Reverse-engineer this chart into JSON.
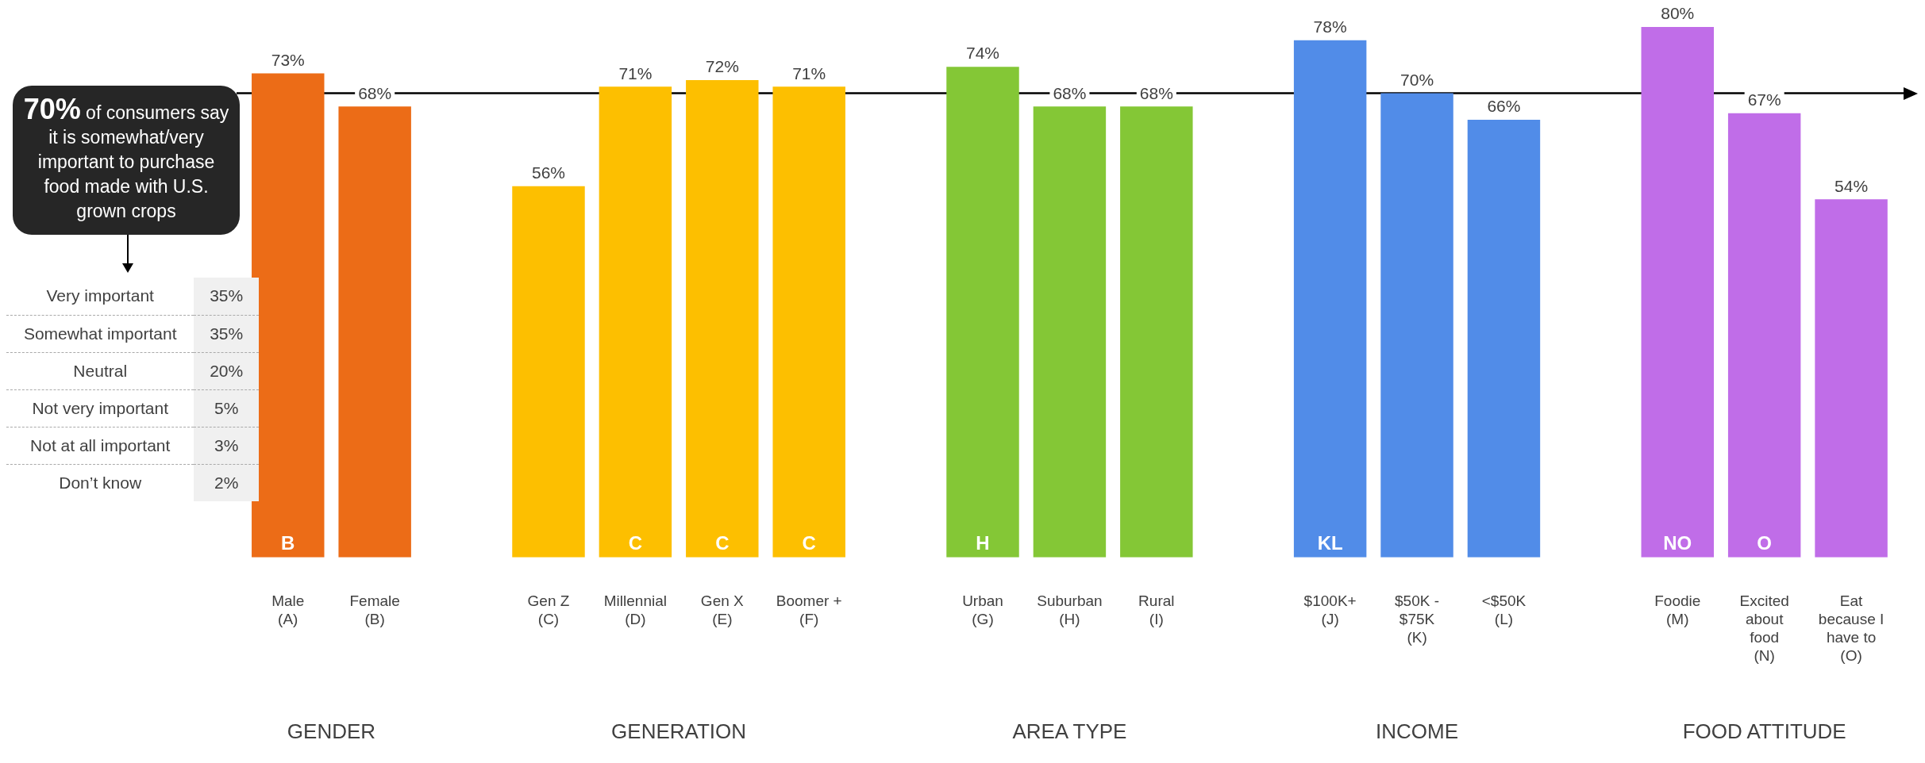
{
  "chart_data": [
    {
      "type": "bar",
      "categories": [
        "Male\n(A)",
        "Female\n(B)",
        null,
        "Gen Z\n(C)",
        "Millennial\n(D)",
        "Gen X\n(E)",
        "Boomer +\n(F)",
        null,
        "Urban\n(G)",
        "Suburban\n(H)",
        "Rural\n(I)",
        null,
        "$100K+\n(J)",
        "$50K -\n$75K\n(K)",
        "<$50K\n(L)",
        null,
        "Foodie\n(M)",
        "Excited\nabout\nfood\n(N)",
        "Eat\nbecause I\nhave to\n(O)"
      ],
      "values": [
        73,
        68,
        null,
        56,
        71,
        72,
        71,
        null,
        74,
        68,
        68,
        null,
        78,
        70,
        66,
        null,
        80,
        67,
        54
      ],
      "colors": [
        "#ec6c17",
        "#ec6c17",
        null,
        "#fdbf00",
        "#fdbf00",
        "#fdbf00",
        "#fdbf00",
        null,
        "#84c736",
        "#84c736",
        "#84c736",
        null,
        "#518ce8",
        "#518ce8",
        "#518ce8",
        null,
        "#c06de8",
        "#c06de8",
        "#c06de8"
      ],
      "value_labels": [
        "73%",
        "68%",
        null,
        "56%",
        "71%",
        "72%",
        "71%",
        null,
        "74%",
        "68%",
        "68%",
        null,
        "78%",
        "70%",
        "66%",
        null,
        "80%",
        "67%",
        "54%"
      ],
      "ref_lines": [
        {
          "axis": "y",
          "value": 70,
          "color": "#000000"
        }
      ],
      "annotations": [
        "GENDER",
        "GENERATION",
        "AREA TYPE",
        "INCOME",
        "FOOD ATTITUDE",
        {
          "text": "B",
          "x": "Male\n(A)",
          "y": 0
        },
        {
          "text": "C",
          "x": "Millennial\n(D)",
          "y": 0
        },
        {
          "text": "C",
          "x": "Gen X\n(E)",
          "y": 0
        },
        {
          "text": "C",
          "x": "Boomer +\n(F)",
          "y": 0
        },
        {
          "text": "H",
          "x": "Urban\n(G)",
          "y": 0
        },
        {
          "text": "KL",
          "x": "$100K+\n(J)",
          "y": 0
        },
        {
          "text": "NO",
          "x": "Foodie\n(M)",
          "y": 0
        },
        {
          "text": "O",
          "x": "Excited\nabout\nfood\n(N)",
          "y": 0
        }
      ],
      "grid": false,
      "legend": false
    },
    {
      "type": "other",
      "title": "70% of consumers say it is somewhat/very important to purchase food made with U.S. grown crops",
      "categories": [
        "Very important",
        "Somewhat important",
        "Neutral",
        "Not very important",
        "Not at all important",
        "Don’t know"
      ],
      "values": [
        35,
        35,
        20,
        5,
        3,
        2
      ],
      "value_labels": [
        "35%",
        "35%",
        "20%",
        "5%",
        "3%",
        "2%"
      ]
    }
  ]
}
